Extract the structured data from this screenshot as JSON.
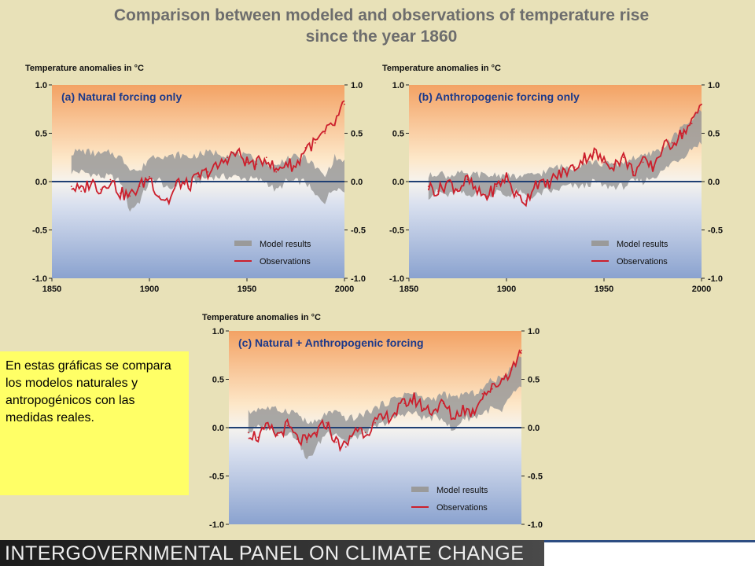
{
  "title_line1": "Comparison between modeled and observations of temperature rise",
  "title_line2": "since the year 1860",
  "note": "En estas gráficas se compara los modelos naturales y antropogénicos con las medidas reales.",
  "footer": "INTERGOVERNMENTAL PANEL ON CLIMATE CHANGE",
  "colors": {
    "model": "#9a9a9a",
    "observations": "#cc1f2c",
    "zero_line": "#1f3f73",
    "panel_title": "#1d3a8a"
  },
  "chart_data": [
    {
      "type": "line",
      "title": "(a) Natural forcing only",
      "ylabel": "Temperature anomalies in °C",
      "x_ticks": [
        "1850",
        "1900",
        "1950",
        "2000"
      ],
      "y_ticks": [
        "1.0",
        "0.5",
        "0.0",
        "-0.5",
        "-1.0"
      ],
      "xlim": [
        1850,
        2000
      ],
      "ylim": [
        -1.0,
        1.0
      ],
      "legend": [
        "Model results",
        "Observations"
      ],
      "legend_position": "bottom-right",
      "series": [
        {
          "name": "Model results",
          "x": [
            1860,
            1865,
            1870,
            1875,
            1880,
            1885,
            1890,
            1895,
            1900,
            1905,
            1910,
            1915,
            1920,
            1925,
            1930,
            1935,
            1940,
            1945,
            1950,
            1955,
            1960,
            1965,
            1970,
            1975,
            1980,
            1985,
            1990,
            1995,
            2000
          ],
          "low": [
            0.1,
            0.1,
            0.08,
            0.05,
            0.05,
            0.0,
            -0.3,
            -0.2,
            0.0,
            0.02,
            -0.1,
            0.0,
            0.0,
            0.0,
            0.05,
            0.05,
            0.05,
            0.05,
            0.03,
            0.02,
            0.0,
            -0.1,
            0.0,
            0.0,
            0.0,
            -0.15,
            -0.2,
            -0.05,
            -0.1
          ],
          "high": [
            0.3,
            0.32,
            0.3,
            0.28,
            0.3,
            0.25,
            0.15,
            0.1,
            0.25,
            0.28,
            0.25,
            0.28,
            0.25,
            0.28,
            0.3,
            0.3,
            0.28,
            0.3,
            0.25,
            0.25,
            0.2,
            0.15,
            0.25,
            0.25,
            0.25,
            0.15,
            0.05,
            0.25,
            0.2
          ]
        },
        {
          "name": "Observations",
          "x": [
            1860,
            1865,
            1870,
            1875,
            1880,
            1885,
            1890,
            1895,
            1900,
            1905,
            1910,
            1915,
            1920,
            1925,
            1930,
            1935,
            1940,
            1945,
            1950,
            1955,
            1960,
            1965,
            1970,
            1975,
            1980,
            1985,
            1990,
            1995,
            2000
          ],
          "y": [
            -0.05,
            -0.1,
            0.0,
            -0.08,
            0.02,
            -0.12,
            -0.15,
            -0.05,
            0.05,
            -0.15,
            -0.2,
            0.0,
            -0.05,
            0.05,
            0.1,
            0.15,
            0.25,
            0.3,
            0.2,
            0.18,
            0.25,
            0.1,
            0.2,
            0.15,
            0.35,
            0.4,
            0.5,
            0.6,
            0.8
          ]
        }
      ]
    },
    {
      "type": "line",
      "title": "(b) Anthropogenic forcing only",
      "ylabel": "Temperature anomalies in °C",
      "x_ticks": [
        "1850",
        "1900",
        "1950",
        "2000"
      ],
      "y_ticks": [
        "1.0",
        "0.5",
        "0.0",
        "-0.5",
        "-1.0"
      ],
      "xlim": [
        1850,
        2000
      ],
      "ylim": [
        -1.0,
        1.0
      ],
      "legend": [
        "Model results",
        "Observations"
      ],
      "legend_position": "bottom-right",
      "series": [
        {
          "name": "Model results",
          "x": [
            1860,
            1865,
            1870,
            1875,
            1880,
            1885,
            1890,
            1895,
            1900,
            1905,
            1910,
            1915,
            1920,
            1925,
            1930,
            1935,
            1940,
            1945,
            1950,
            1955,
            1960,
            1965,
            1970,
            1975,
            1980,
            1985,
            1990,
            1995,
            2000
          ],
          "low": [
            -0.15,
            -0.1,
            -0.15,
            -0.1,
            -0.15,
            -0.1,
            -0.15,
            -0.1,
            -0.15,
            -0.1,
            -0.15,
            -0.15,
            -0.1,
            -0.1,
            -0.05,
            -0.05,
            -0.05,
            0.0,
            -0.05,
            -0.05,
            -0.05,
            0.0,
            0.0,
            0.05,
            0.1,
            0.2,
            0.25,
            0.35,
            0.4
          ],
          "high": [
            0.05,
            0.1,
            0.05,
            0.1,
            0.05,
            0.08,
            0.05,
            0.08,
            0.05,
            0.05,
            0.05,
            0.08,
            0.1,
            0.15,
            0.15,
            0.15,
            0.2,
            0.2,
            0.18,
            0.18,
            0.2,
            0.25,
            0.25,
            0.3,
            0.35,
            0.45,
            0.55,
            0.65,
            0.75
          ]
        },
        {
          "name": "Observations",
          "x": [
            1860,
            1865,
            1870,
            1875,
            1880,
            1885,
            1890,
            1895,
            1900,
            1905,
            1910,
            1915,
            1920,
            1925,
            1930,
            1935,
            1940,
            1945,
            1950,
            1955,
            1960,
            1965,
            1970,
            1975,
            1980,
            1985,
            1990,
            1995,
            2000
          ],
          "y": [
            -0.05,
            -0.1,
            0.0,
            -0.08,
            0.02,
            -0.12,
            -0.15,
            -0.05,
            0.05,
            -0.15,
            -0.2,
            0.0,
            -0.05,
            0.05,
            0.1,
            0.15,
            0.25,
            0.3,
            0.2,
            0.18,
            0.25,
            0.1,
            0.2,
            0.15,
            0.35,
            0.4,
            0.5,
            0.6,
            0.8
          ]
        }
      ]
    },
    {
      "type": "line",
      "title": "(c) Natural + Anthropogenic forcing",
      "ylabel": "Temperature anomalies in °C",
      "x_ticks": [],
      "y_ticks": [
        "1.0",
        "0.5",
        "0.0",
        "-0.5",
        "-1.0"
      ],
      "xlim": [
        1850,
        2000
      ],
      "ylim": [
        -1.0,
        1.0
      ],
      "legend": [
        "Model results",
        "Observations"
      ],
      "legend_position": "bottom-right",
      "series": [
        {
          "name": "Model results",
          "x": [
            1860,
            1865,
            1870,
            1875,
            1880,
            1885,
            1890,
            1895,
            1900,
            1905,
            1910,
            1915,
            1920,
            1925,
            1930,
            1935,
            1940,
            1945,
            1950,
            1955,
            1960,
            1965,
            1970,
            1975,
            1980,
            1985,
            1990,
            1995,
            2000
          ],
          "low": [
            -0.05,
            0.0,
            0.0,
            -0.05,
            -0.05,
            -0.1,
            -0.35,
            -0.2,
            -0.05,
            -0.05,
            -0.15,
            -0.1,
            -0.05,
            0.0,
            0.05,
            0.1,
            0.15,
            0.15,
            0.1,
            0.1,
            0.1,
            -0.05,
            0.1,
            0.1,
            0.15,
            0.2,
            0.15,
            0.35,
            0.4
          ],
          "high": [
            0.15,
            0.2,
            0.2,
            0.18,
            0.18,
            0.15,
            0.05,
            0.05,
            0.15,
            0.15,
            0.1,
            0.1,
            0.15,
            0.2,
            0.25,
            0.3,
            0.35,
            0.35,
            0.3,
            0.3,
            0.35,
            0.3,
            0.35,
            0.35,
            0.4,
            0.5,
            0.5,
            0.65,
            0.75
          ]
        },
        {
          "name": "Observations",
          "x": [
            1860,
            1865,
            1870,
            1875,
            1880,
            1885,
            1890,
            1895,
            1900,
            1905,
            1910,
            1915,
            1920,
            1925,
            1930,
            1935,
            1940,
            1945,
            1950,
            1955,
            1960,
            1965,
            1970,
            1975,
            1980,
            1985,
            1990,
            1995,
            2000
          ],
          "y": [
            -0.05,
            -0.1,
            0.0,
            -0.08,
            0.02,
            -0.12,
            -0.15,
            -0.05,
            0.05,
            -0.15,
            -0.2,
            0.0,
            -0.05,
            0.05,
            0.1,
            0.15,
            0.25,
            0.3,
            0.2,
            0.18,
            0.25,
            0.1,
            0.2,
            0.15,
            0.35,
            0.4,
            0.5,
            0.6,
            0.8
          ]
        }
      ]
    }
  ]
}
